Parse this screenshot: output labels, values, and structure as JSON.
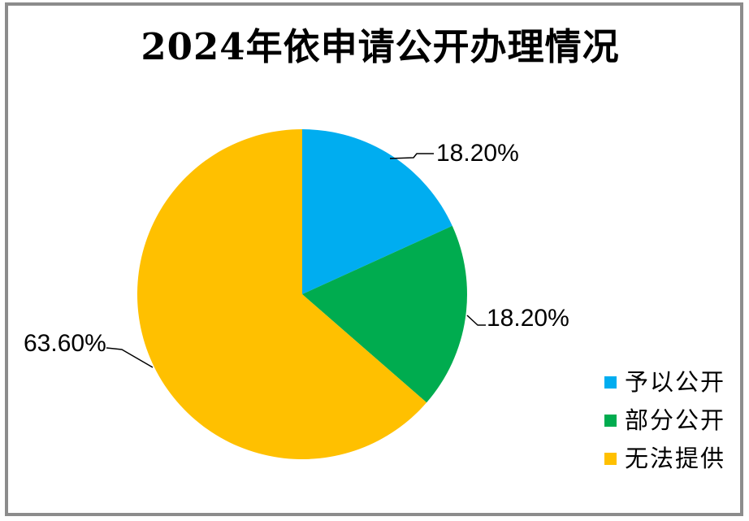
{
  "frame": {
    "border_color": "#8c8c8c"
  },
  "chart_data": {
    "type": "pie",
    "title": "2024年依申请公开办理情况",
    "categories": [
      "予以公开",
      "部分公开",
      "无法提供"
    ],
    "values": [
      18.2,
      18.2,
      63.6
    ],
    "series": [
      {
        "name": "予以公开",
        "value": 18.2,
        "label": "18.20%",
        "color": "#00adf0"
      },
      {
        "name": "部分公开",
        "value": 18.2,
        "label": "18.20%",
        "color": "#00ac4f"
      },
      {
        "name": "无法提供",
        "value": 63.6,
        "label": "63.60%",
        "color": "#ffc000"
      }
    ],
    "start_angle_deg": 0,
    "direction": "clockwise",
    "legend_position": "bottom-right",
    "leader_line_color": "#000000",
    "text_color": "#000000",
    "background_color": "#ffffff"
  }
}
